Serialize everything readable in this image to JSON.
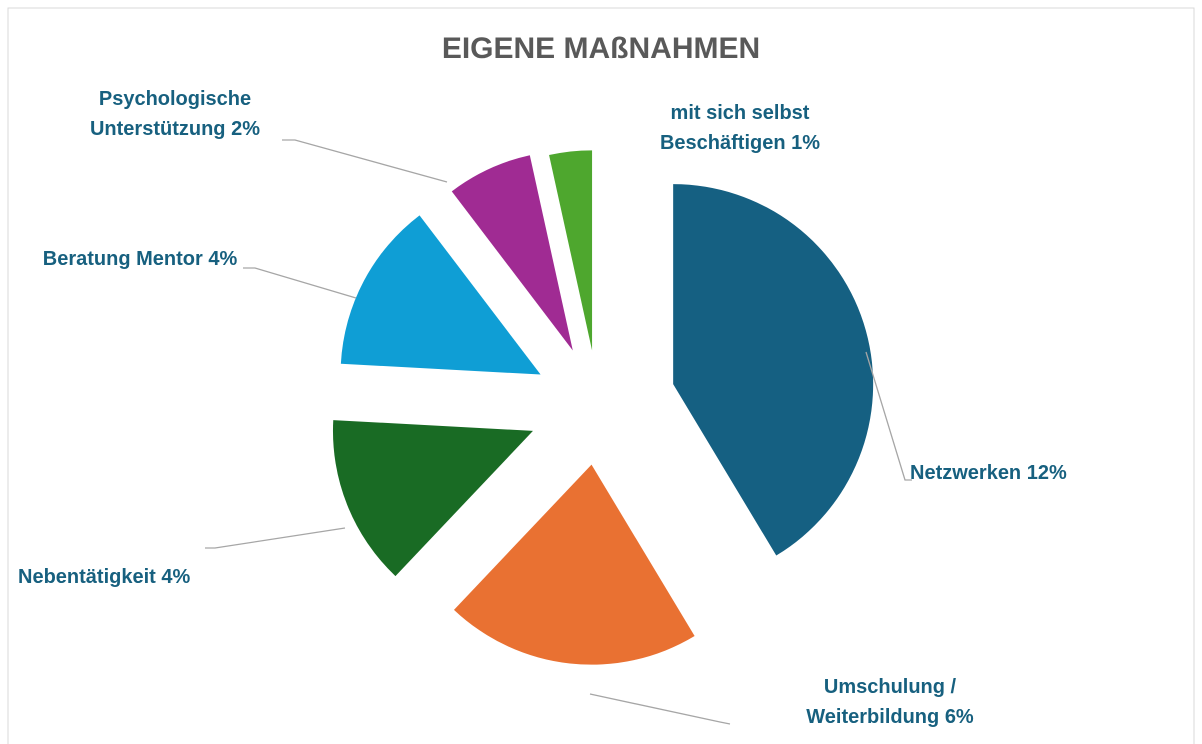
{
  "chart_data": {
    "type": "pie",
    "title": "EIGENE MAßNAHMEN",
    "categories": [
      "Netzwerken",
      "Umschulung / Weiterbildung",
      "Nebentätigkeit",
      "Beratung Mentor",
      "Psychologische Unterstützung",
      "mit sich selbst Beschäftigen"
    ],
    "values": [
      12,
      6,
      4,
      4,
      2,
      1
    ],
    "value_labels": [
      "12%",
      "6%",
      "4%",
      "4%",
      "2%",
      "1%"
    ],
    "colors": [
      "#156082",
      "#e97132",
      "#196b24",
      "#0f9ed5",
      "#a02b93",
      "#4ea72e"
    ]
  }
}
